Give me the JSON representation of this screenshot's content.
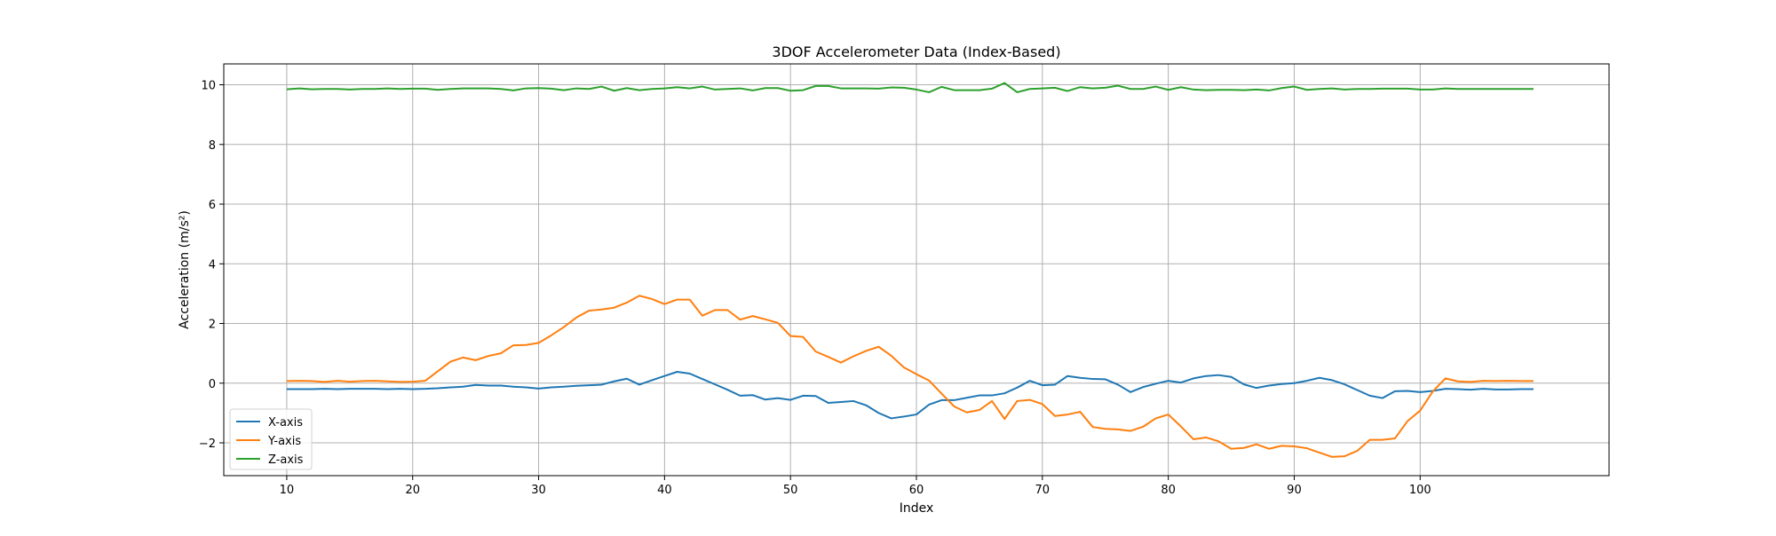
{
  "chart_data": {
    "type": "line",
    "title": "3DOF Accelerometer Data (Index-Based)",
    "xlabel": "Index",
    "ylabel": "Acceleration (m/s²)",
    "xlim": [
      5,
      115
    ],
    "ylim": [
      -3.1,
      10.7
    ],
    "xticks": [
      10,
      20,
      30,
      40,
      50,
      60,
      70,
      80,
      90,
      100
    ],
    "yticks": [
      -2,
      0,
      2,
      4,
      6,
      8,
      10
    ],
    "grid": true,
    "legend_position": "lower-left",
    "x_start": 10,
    "series": [
      {
        "name": "X-axis",
        "color": "#1f77b4",
        "values": [
          -0.2,
          -0.2,
          -0.2,
          -0.19,
          -0.2,
          -0.19,
          -0.19,
          -0.19,
          -0.2,
          -0.19,
          -0.2,
          -0.19,
          -0.17,
          -0.14,
          -0.12,
          -0.06,
          -0.08,
          -0.08,
          -0.12,
          -0.14,
          -0.18,
          -0.14,
          -0.12,
          -0.09,
          -0.07,
          -0.05,
          0.06,
          0.15,
          -0.05,
          0.1,
          0.24,
          0.38,
          0.32,
          0.14,
          -0.04,
          -0.22,
          -0.42,
          -0.4,
          -0.55,
          -0.5,
          -0.56,
          -0.42,
          -0.43,
          -0.66,
          -0.63,
          -0.6,
          -0.74,
          -1.0,
          -1.18,
          -1.12,
          -1.05,
          -0.72,
          -0.57,
          -0.57,
          -0.49,
          -0.41,
          -0.41,
          -0.34,
          -0.15,
          0.08,
          -0.07,
          -0.05,
          0.24,
          0.18,
          0.14,
          0.13,
          -0.05,
          -0.3,
          -0.13,
          -0.02,
          0.08,
          0.02,
          0.16,
          0.24,
          0.27,
          0.21,
          -0.04,
          -0.16,
          -0.08,
          -0.03,
          0.0,
          0.08,
          0.18,
          0.1,
          -0.04,
          -0.23,
          -0.42,
          -0.5,
          -0.27,
          -0.26,
          -0.3,
          -0.26,
          -0.19,
          -0.2,
          -0.22,
          -0.19,
          -0.21,
          -0.21,
          -0.2,
          -0.2
        ]
      },
      {
        "name": "Y-axis",
        "color": "#ff7f0e",
        "values": [
          0.07,
          0.08,
          0.07,
          0.04,
          0.08,
          0.05,
          0.07,
          0.08,
          0.06,
          0.04,
          0.05,
          0.08,
          0.4,
          0.72,
          0.86,
          0.77,
          0.91,
          1.0,
          1.27,
          1.28,
          1.35,
          1.6,
          1.88,
          2.2,
          2.43,
          2.47,
          2.53,
          2.7,
          2.93,
          2.82,
          2.65,
          2.8,
          2.8,
          2.26,
          2.45,
          2.45,
          2.13,
          2.25,
          2.14,
          2.02,
          1.58,
          1.55,
          1.06,
          0.88,
          0.69,
          0.9,
          1.08,
          1.22,
          0.92,
          0.53,
          0.3,
          0.09,
          -0.35,
          -0.78,
          -0.98,
          -0.9,
          -0.6,
          -1.2,
          -0.6,
          -0.56,
          -0.7,
          -1.1,
          -1.05,
          -0.96,
          -1.47,
          -1.53,
          -1.55,
          -1.6,
          -1.46,
          -1.18,
          -1.05,
          -1.45,
          -1.88,
          -1.82,
          -1.95,
          -2.2,
          -2.17,
          -2.05,
          -2.2,
          -2.1,
          -2.12,
          -2.18,
          -2.33,
          -2.47,
          -2.45,
          -2.27,
          -1.9,
          -1.9,
          -1.85,
          -1.27,
          -0.92,
          -0.28,
          0.16,
          0.06,
          0.04,
          0.08,
          0.07,
          0.08,
          0.07,
          0.07
        ]
      },
      {
        "name": "Z-axis",
        "color": "#2ca02c",
        "values": [
          9.85,
          9.88,
          9.85,
          9.86,
          9.86,
          9.84,
          9.86,
          9.86,
          9.88,
          9.86,
          9.87,
          9.87,
          9.83,
          9.86,
          9.88,
          9.88,
          9.88,
          9.86,
          9.81,
          9.88,
          9.89,
          9.87,
          9.82,
          9.88,
          9.86,
          9.94,
          9.8,
          9.89,
          9.82,
          9.86,
          9.88,
          9.92,
          9.88,
          9.94,
          9.84,
          9.86,
          9.88,
          9.81,
          9.89,
          9.89,
          9.8,
          9.82,
          9.96,
          9.96,
          9.88,
          9.88,
          9.88,
          9.87,
          9.91,
          9.9,
          9.84,
          9.75,
          9.93,
          9.82,
          9.82,
          9.82,
          9.87,
          10.06,
          9.75,
          9.86,
          9.88,
          9.9,
          9.79,
          9.92,
          9.88,
          9.9,
          9.97,
          9.86,
          9.86,
          9.94,
          9.83,
          9.92,
          9.84,
          9.82,
          9.83,
          9.83,
          9.82,
          9.84,
          9.81,
          9.89,
          9.94,
          9.83,
          9.86,
          9.88,
          9.84,
          9.86,
          9.86,
          9.87,
          9.87,
          9.87,
          9.84,
          9.84,
          9.88,
          9.86,
          9.86,
          9.86,
          9.86,
          9.86,
          9.86,
          9.86
        ]
      }
    ]
  }
}
